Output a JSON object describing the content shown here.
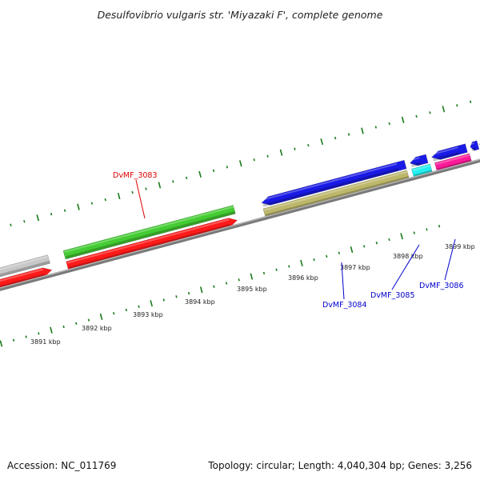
{
  "title": "Desulfovibrio vulgaris str. 'Miyazaki F', complete genome",
  "footer": {
    "accession": "Accession: NC_011769",
    "summary": "Topology: circular; Length: 4,040,304 bp; Genes: 3,256"
  },
  "colors": {
    "backbone": "#808080",
    "tick": "#1a7a1a",
    "gene_red": "#ff1a1a",
    "gene_green": "#44cc33",
    "gene_gray": "#c8c8c8",
    "gene_blue": "#1a1ae6",
    "gene_khaki": "#bdb76b",
    "gene_cyan": "#22f0f0",
    "gene_pink": "#ff1a99",
    "label_red": "#dd0000",
    "label_blue": "#0000cc"
  },
  "ruler_labels": [
    "3891 kbp",
    "3892 kbp",
    "3893 kbp",
    "3894 kbp",
    "3895 kbp",
    "3896 kbp",
    "3897 kbp",
    "3898 kbp",
    "3899 kbp"
  ],
  "gene_labels": [
    {
      "name": "DvMF_3083",
      "color": "label_red"
    },
    {
      "name": "DvMF_3084",
      "color": "label_blue"
    },
    {
      "name": "DvMF_3085",
      "color": "label_blue"
    },
    {
      "name": "DvMF_3086",
      "color": "label_blue"
    }
  ]
}
